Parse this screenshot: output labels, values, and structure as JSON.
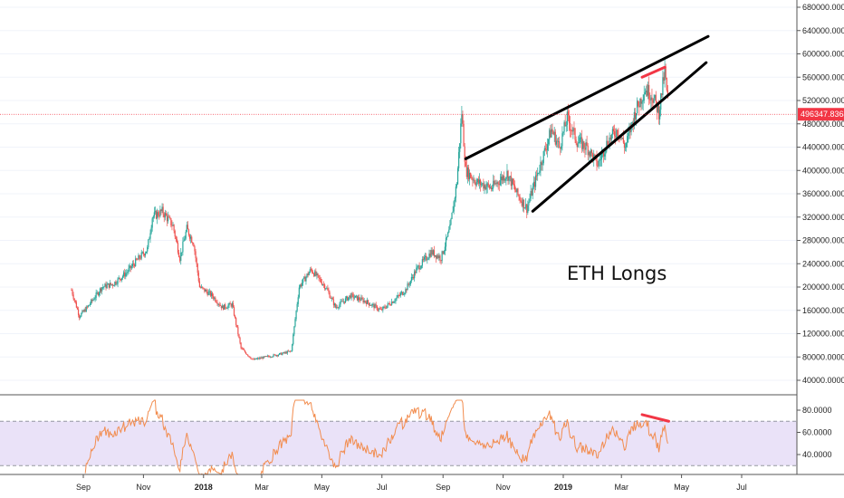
{
  "chart_data": [
    {
      "type": "candlestick",
      "title": "",
      "y_ticks": [
        40000,
        80000,
        120000,
        160000,
        200000,
        240000,
        280000,
        320000,
        360000,
        400000,
        440000,
        480000,
        520000,
        560000,
        600000,
        640000,
        680000
      ],
      "y_tick_labels": [
        "40000.0000",
        "80000.0000",
        "120000.0000",
        "160000.0000",
        "200000.0000",
        "240000.0000",
        "280000.0000",
        "320000.0000",
        "360000.0000",
        "400000.0000",
        "440000.0000",
        "480000.0000",
        "520000.0000",
        "560000.0000",
        "600000.0000",
        "640000.0000",
        "680000.0000"
      ],
      "ylim": [
        10000,
        690000
      ],
      "x_ticks": [
        "Sep",
        "Nov",
        "2018",
        "Mar",
        "May",
        "Jul",
        "Sep",
        "Nov",
        "2019",
        "Mar",
        "May",
        "Jul"
      ],
      "x_tick_bold": [
        false,
        false,
        true,
        false,
        false,
        false,
        false,
        false,
        true,
        false,
        false,
        false
      ],
      "current_price": 496347.8364,
      "current_price_label": "496347.8364",
      "price_path": [
        [
          "2017-08-20",
          195000
        ],
        [
          "2017-08-28",
          150000
        ],
        [
          "2017-09-05",
          165000
        ],
        [
          "2017-09-20",
          200000
        ],
        [
          "2017-10-01",
          205000
        ],
        [
          "2017-10-15",
          225000
        ],
        [
          "2017-10-25",
          245000
        ],
        [
          "2017-11-05",
          265000
        ],
        [
          "2017-11-10",
          320000
        ],
        [
          "2017-11-20",
          330000
        ],
        [
          "2017-12-01",
          305000
        ],
        [
          "2017-12-08",
          250000
        ],
        [
          "2017-12-15",
          300000
        ],
        [
          "2017-12-22",
          275000
        ],
        [
          "2017-12-28",
          200000
        ],
        [
          "2018-01-10",
          185000
        ],
        [
          "2018-01-20",
          165000
        ],
        [
          "2018-01-30",
          170000
        ],
        [
          "2018-02-08",
          95000
        ],
        [
          "2018-02-20",
          75000
        ],
        [
          "2018-03-05",
          80000
        ],
        [
          "2018-03-20",
          85000
        ],
        [
          "2018-03-31",
          90000
        ],
        [
          "2018-04-08",
          200000
        ],
        [
          "2018-04-20",
          230000
        ],
        [
          "2018-05-05",
          200000
        ],
        [
          "2018-05-15",
          165000
        ],
        [
          "2018-05-30",
          185000
        ],
        [
          "2018-06-15",
          175000
        ],
        [
          "2018-06-30",
          160000
        ],
        [
          "2018-07-15",
          180000
        ],
        [
          "2018-07-25",
          195000
        ],
        [
          "2018-08-05",
          230000
        ],
        [
          "2018-08-20",
          260000
        ],
        [
          "2018-08-30",
          250000
        ],
        [
          "2018-09-08",
          300000
        ],
        [
          "2018-09-15",
          380000
        ],
        [
          "2018-09-20",
          500000
        ],
        [
          "2018-09-24",
          400000
        ],
        [
          "2018-10-05",
          380000
        ],
        [
          "2018-10-20",
          370000
        ],
        [
          "2018-11-05",
          395000
        ],
        [
          "2018-11-15",
          360000
        ],
        [
          "2018-11-25",
          335000
        ],
        [
          "2018-12-05",
          390000
        ],
        [
          "2018-12-20",
          470000
        ],
        [
          "2018-12-28",
          440000
        ],
        [
          "2019-01-05",
          490000
        ],
        [
          "2019-01-15",
          450000
        ],
        [
          "2019-01-25",
          440000
        ],
        [
          "2019-02-05",
          410000
        ],
        [
          "2019-02-15",
          450000
        ],
        [
          "2019-02-25",
          470000
        ],
        [
          "2019-03-05",
          440000
        ],
        [
          "2019-03-15",
          500000
        ],
        [
          "2019-03-25",
          540000
        ],
        [
          "2019-04-01",
          530000
        ],
        [
          "2019-04-08",
          500000
        ],
        [
          "2019-04-14",
          570000
        ],
        [
          "2019-04-18",
          500000
        ]
      ],
      "trendlines": [
        {
          "color": "#000000",
          "points": [
            [
              "2018-09-24",
              420000
            ],
            [
              "2019-05-28",
              630000
            ]
          ]
        },
        {
          "color": "#000000",
          "points": [
            [
              "2018-12-01",
              330000
            ],
            [
              "2019-05-26",
              585000
            ]
          ]
        },
        {
          "color": "#f23645",
          "points": [
            [
              "2019-03-22",
              560000
            ],
            [
              "2019-04-14",
              577000
            ]
          ]
        }
      ],
      "annotation": "ETH Longs",
      "candle_up_color": "#26a69a",
      "candle_down_color": "#ef5350"
    },
    {
      "type": "line",
      "y_ticks": [
        40,
        60,
        80
      ],
      "y_tick_labels": [
        "40.0000",
        "60.0000",
        "80.0000"
      ],
      "ylim": [
        20,
        90
      ],
      "band": [
        30,
        70
      ],
      "band_color": "#e1d5f5",
      "line_color": "#f28c4e",
      "divergence_line": {
        "color": "#f23645",
        "points": [
          [
            "2019-03-22",
            76
          ],
          [
            "2019-04-18",
            70
          ]
        ]
      }
    }
  ],
  "colors": {
    "axis": "#555555",
    "grid": "#f0f3fa",
    "price_line": "#f23645"
  }
}
